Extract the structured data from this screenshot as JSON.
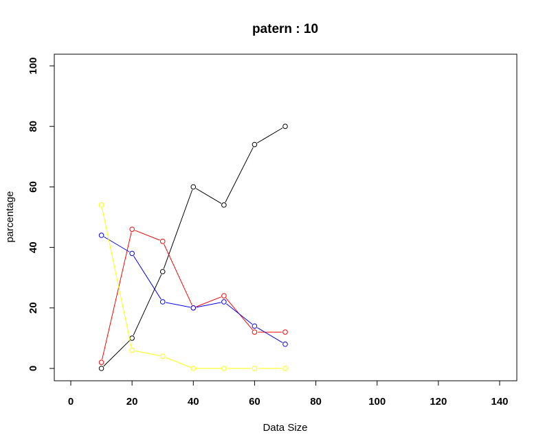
{
  "chart_data": {
    "type": "line",
    "title": "patern :  10",
    "xlabel": "Data Size",
    "ylabel": "parcentage",
    "xlim": [
      0,
      140
    ],
    "ylim": [
      0,
      100
    ],
    "xticks": [
      0,
      20,
      40,
      60,
      80,
      100,
      120,
      140
    ],
    "yticks": [
      0,
      20,
      40,
      60,
      80,
      100
    ],
    "grid": false,
    "legend": "none",
    "x": [
      10,
      20,
      30,
      40,
      50,
      60,
      70
    ],
    "series": [
      {
        "color": "#000000",
        "values": [
          0,
          10,
          32,
          60,
          54,
          74,
          80
        ]
      },
      {
        "color": "#ff0000",
        "values": [
          2,
          46,
          42,
          20,
          24,
          12,
          12
        ]
      },
      {
        "color": "#0000ff",
        "values": [
          44,
          38,
          22,
          20,
          22,
          14,
          8
        ]
      },
      {
        "color": "#ffff00",
        "values": [
          54,
          6,
          4,
          0,
          0,
          0,
          0
        ]
      }
    ]
  }
}
